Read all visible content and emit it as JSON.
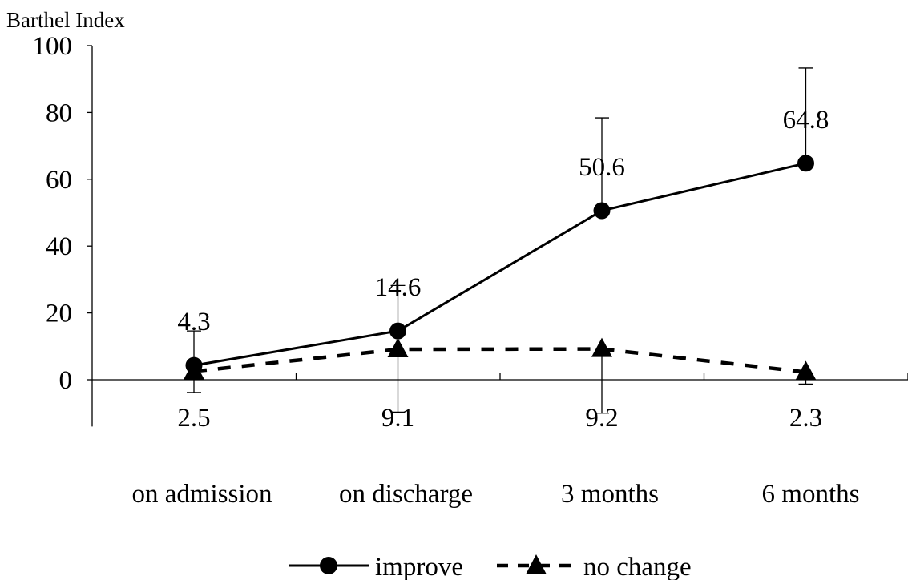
{
  "chart_data": {
    "type": "line",
    "title": "",
    "ylabel": "Barthel Index",
    "xlabel": "",
    "categories": [
      "on admission",
      "on discharge",
      "3 months",
      "6 months"
    ],
    "ylim": [
      -14,
      100
    ],
    "yticks": [
      0,
      20,
      40,
      60,
      80,
      100
    ],
    "grid": false,
    "legend_position": "bottom",
    "series": [
      {
        "name": "improve",
        "values": [
          4.3,
          14.6,
          50.6,
          64.8
        ],
        "error_upper": [
          14.6,
          28.2,
          78.4,
          93.3
        ],
        "error_lower": [
          4.3,
          14.6,
          50.6,
          64.8
        ],
        "labels": [
          "4.3",
          "14.6",
          "50.6",
          "64.8"
        ],
        "line_style": "solid",
        "marker": "circle"
      },
      {
        "name": "no change",
        "values": [
          2.5,
          9.1,
          9.2,
          2.3
        ],
        "error_upper": [
          2.5,
          9.1,
          9.2,
          2.3
        ],
        "error_lower": [
          -3.8,
          -9.7,
          -10.0,
          -1.3
        ],
        "labels": [
          "2.5",
          "9.1",
          "9.2",
          "2.3"
        ],
        "line_style": "dashed",
        "marker": "triangle"
      }
    ]
  }
}
